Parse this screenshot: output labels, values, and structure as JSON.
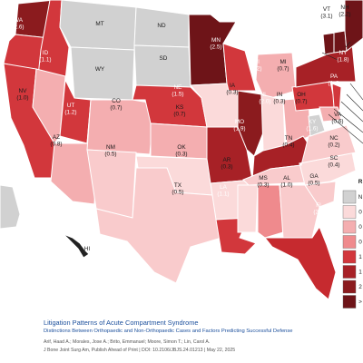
{
  "states": [
    {
      "id": "WA",
      "text": "WA",
      "value": "(2.6)",
      "fill": "#8b1b1e",
      "light": true
    },
    {
      "id": "OR",
      "text": "",
      "value": "",
      "fill": "#d2373c",
      "light": true
    },
    {
      "id": "CA",
      "text": "",
      "value": "",
      "fill": "#d2373c",
      "light": true
    },
    {
      "id": "ID",
      "text": "ID",
      "value": "(1.1)",
      "fill": "#d2373c",
      "light": true
    },
    {
      "id": "NV",
      "text": "NV",
      "value": "(1.0)",
      "fill": "#f4aeb0",
      "light": false
    },
    {
      "id": "MT",
      "text": "MT",
      "value": "",
      "fill": "#d1d1d1",
      "light": false
    },
    {
      "id": "WY",
      "text": "WY",
      "value": "",
      "fill": "#d1d1d1",
      "light": false
    },
    {
      "id": "UT",
      "text": "UT",
      "value": "(1.2)",
      "fill": "#d2373c",
      "light": true
    },
    {
      "id": "AZ",
      "text": "AZ",
      "value": "(0.8)",
      "fill": "#f4aeb0",
      "light": false
    },
    {
      "id": "CO",
      "text": "CO",
      "value": "(0.7)",
      "fill": "#f4aeb0",
      "light": false
    },
    {
      "id": "NM",
      "text": "NM",
      "value": "(0.5)",
      "fill": "#f9cbcc",
      "light": false
    },
    {
      "id": "ND",
      "text": "ND",
      "value": "",
      "fill": "#d1d1d1",
      "light": false
    },
    {
      "id": "SD",
      "text": "SD",
      "value": "",
      "fill": "#d1d1d1",
      "light": false
    },
    {
      "id": "NE",
      "text": "NE",
      "value": "(1.5)",
      "fill": "#d2373c",
      "light": true
    },
    {
      "id": "KS",
      "text": "KS",
      "value": "(0.7)",
      "fill": "#f4aeb0",
      "light": false
    },
    {
      "id": "OK",
      "text": "OK",
      "value": "(0.3)",
      "fill": "#fbdada",
      "light": false
    },
    {
      "id": "TX",
      "text": "TX",
      "value": "(0.5)",
      "fill": "#f9cbcc",
      "light": false
    },
    {
      "id": "MN",
      "text": "MN",
      "value": "(2.5)",
      "fill": "#6e1418",
      "light": true
    },
    {
      "id": "IA",
      "text": "IA",
      "value": "(0.3)",
      "fill": "#fbdada",
      "light": false
    },
    {
      "id": "MO",
      "text": "MO",
      "value": "(1.9)",
      "fill": "#a72126",
      "light": true
    },
    {
      "id": "AR",
      "text": "AR",
      "value": "(0.3)",
      "fill": "#fbdada",
      "light": false
    },
    {
      "id": "LA",
      "text": "LA",
      "value": "(1.1)",
      "fill": "#d2373c",
      "light": true
    },
    {
      "id": "WI",
      "text": "WI",
      "value": "(1.2)",
      "fill": "#d2373c",
      "light": true
    },
    {
      "id": "IL",
      "text": "IL",
      "value": "(2.0)",
      "fill": "#8b1b1e",
      "light": true
    },
    {
      "id": "MI",
      "text": "MI",
      "value": "(0.7)",
      "fill": "#f4aeb0",
      "light": false
    },
    {
      "id": "IN",
      "text": "IN",
      "value": "(0.3)",
      "fill": "#fbdada",
      "light": false
    },
    {
      "id": "OH",
      "text": "OH",
      "value": "(0.7)",
      "fill": "#f4aeb0",
      "light": false
    },
    {
      "id": "KY",
      "text": "KY",
      "value": "(1.6)",
      "fill": "#a72126",
      "light": true
    },
    {
      "id": "TN",
      "text": "TN",
      "value": "(0.4)",
      "fill": "#f9cbcc",
      "light": false
    },
    {
      "id": "MS",
      "text": "MS",
      "value": "(0.3)",
      "fill": "#fbdada",
      "light": false
    },
    {
      "id": "AL",
      "text": "AL",
      "value": "(1.0)",
      "fill": "#ef8a8d",
      "light": false
    },
    {
      "id": "GA",
      "text": "GA",
      "value": "(0.5)",
      "fill": "#f9cbcc",
      "light": false
    },
    {
      "id": "FL",
      "text": "FL",
      "value": "(2.0)",
      "fill": "#c62a2f",
      "light": true
    },
    {
      "id": "SC",
      "text": "SC",
      "value": "(0.4)",
      "fill": "#f9cbcc",
      "light": false
    },
    {
      "id": "NC",
      "text": "NC",
      "value": "(0.2)",
      "fill": "#fbdada",
      "light": false
    },
    {
      "id": "VA",
      "text": "VA",
      "value": "(0.6)",
      "fill": "#f9cbcc",
      "light": false
    },
    {
      "id": "WV",
      "text": "",
      "value": "",
      "fill": "#d1d1d1",
      "light": false
    },
    {
      "id": "PA",
      "text": "PA",
      "value": "(1.4)",
      "fill": "#d2373c",
      "light": true
    },
    {
      "id": "NY",
      "text": "NY",
      "value": "(1.8)",
      "fill": "#a72126",
      "light": true
    },
    {
      "id": "VT",
      "text": "VT",
      "value": "(3.1)",
      "fill": "#6e1418",
      "light": false
    },
    {
      "id": "NH",
      "text": "NH",
      "value": "(2.2)",
      "fill": "#6e1418",
      "light": false
    },
    {
      "id": "ME",
      "text": "",
      "value": "",
      "fill": "#6e1418",
      "light": true
    },
    {
      "id": "NJ",
      "text": "",
      "value": "",
      "fill": "#d2373c",
      "light": true
    },
    {
      "id": "MD",
      "text": "",
      "value": "",
      "fill": "#f4aeb0",
      "light": false
    },
    {
      "id": "AK",
      "text": "",
      "value": "",
      "fill": "#d1d1d1",
      "light": false
    },
    {
      "id": "HI",
      "text": "HI",
      "value": "",
      "fill": "#222222",
      "light": false
    }
  ],
  "legend": [
    {
      "label": "N",
      "fill": "#d1d1d1"
    },
    {
      "label": "0",
      "fill": "#fbdada"
    },
    {
      "label": "0",
      "fill": "#f4aeb0"
    },
    {
      "label": "0",
      "fill": "#ef8a8d"
    },
    {
      "label": "1",
      "fill": "#d2373c"
    },
    {
      "label": "1",
      "fill": "#a72126"
    },
    {
      "label": "2",
      "fill": "#8b1b1e"
    },
    {
      "label": ">",
      "fill": "#6e1418"
    }
  ],
  "legend_header": "R",
  "caption": {
    "title": "Litigation Patterns of Acute Compartment Syndrome",
    "subtitle": "Distinctions Between Orthopaedic and Non-Orthopaedic Cases and Factors Predicting Successful Defense",
    "authors": "Arif, Haad A.; Morales, Jose A.; Brito, Emmanuel; Moore, Simon T.; Lin, Carol A.",
    "journal": "J Bone Joint Surg Am, Publish Ahead of Print | DOI: 10.2106/JBJS.24.01213 | May 22, 2025"
  }
}
